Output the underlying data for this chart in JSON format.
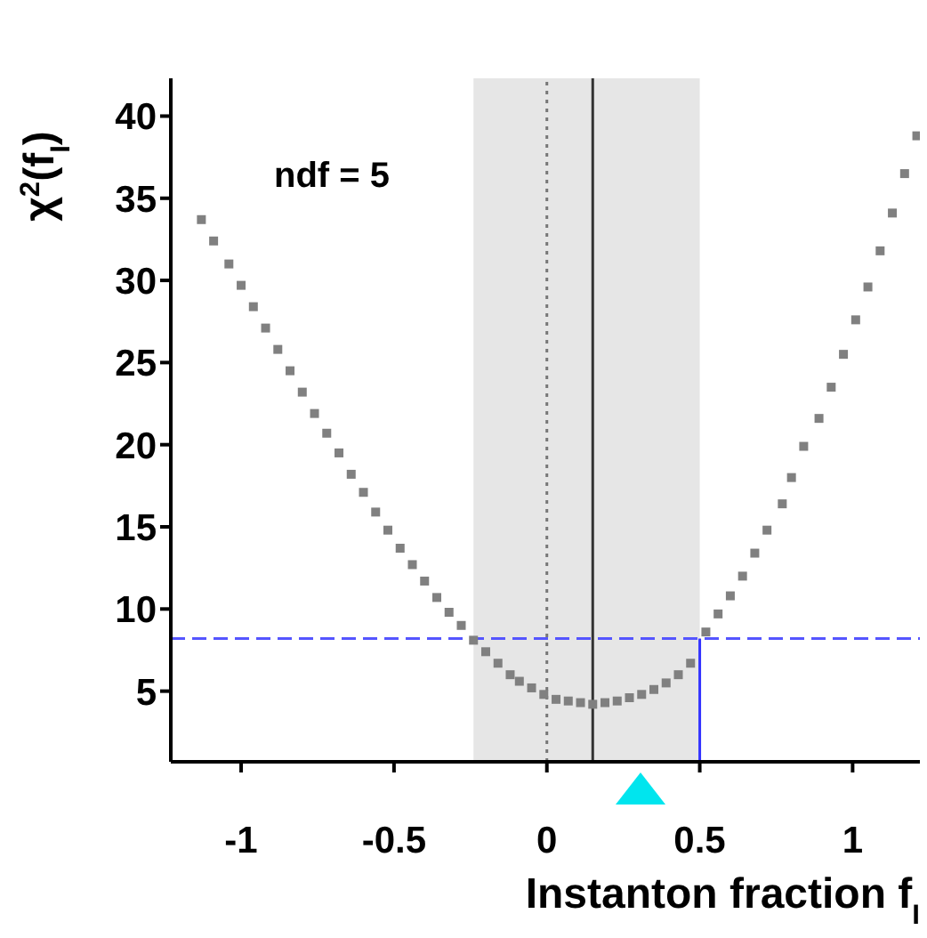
{
  "chart_data": {
    "type": "scatter",
    "xlabel": "Instanton fraction f$_{I}$",
    "ylabel": "χ$^{2}$(f$_{I}$)",
    "annotations": [
      "ndf =  5"
    ],
    "xlim": [
      -1.23,
      1.22
    ],
    "ylim": [
      0.7,
      42.3
    ],
    "xticks": [
      -1,
      -0.5,
      0,
      0.5,
      1
    ],
    "yticks": [
      5,
      10,
      15,
      20,
      25,
      30,
      35,
      40
    ],
    "grid": false,
    "legend": false,
    "series": [
      {
        "marker": "square",
        "color": "#808080",
        "x": [
          -1.13,
          -1.09,
          -1.04,
          -1.0,
          -0.96,
          -0.92,
          -0.88,
          -0.84,
          -0.8,
          -0.76,
          -0.72,
          -0.68,
          -0.64,
          -0.6,
          -0.56,
          -0.52,
          -0.48,
          -0.44,
          -0.4,
          -0.36,
          -0.32,
          -0.28,
          -0.24,
          -0.2,
          -0.16,
          -0.12,
          -0.09,
          -0.05,
          -0.01,
          0.03,
          0.07,
          0.11,
          0.15,
          0.19,
          0.23,
          0.27,
          0.31,
          0.35,
          0.39,
          0.43,
          0.47,
          0.52,
          0.56,
          0.6,
          0.64,
          0.68,
          0.72,
          0.77,
          0.8,
          0.84,
          0.89,
          0.93,
          0.97,
          1.01,
          1.05,
          1.09,
          1.13,
          1.17,
          1.21
        ],
        "values": [
          33.7,
          32.4,
          31.0,
          29.7,
          28.4,
          27.1,
          25.8,
          24.5,
          23.2,
          21.9,
          20.7,
          19.5,
          18.2,
          17.1,
          15.9,
          14.8,
          13.7,
          12.7,
          11.7,
          10.7,
          9.8,
          9.0,
          8.1,
          7.4,
          6.7,
          6.0,
          5.6,
          5.2,
          4.8,
          4.5,
          4.4,
          4.3,
          4.2,
          4.3,
          4.4,
          4.6,
          4.8,
          5.1,
          5.5,
          6.0,
          6.7,
          8.6,
          9.7,
          10.8,
          12.0,
          13.4,
          14.8,
          16.4,
          18.0,
          19.9,
          21.6,
          23.5,
          25.5,
          27.6,
          29.6,
          31.8,
          34.1,
          36.5,
          38.8
        ]
      },
      {
        "type": "line",
        "marker": "none",
        "color": "#3333ff",
        "x": [
          0.5,
          0.5
        ],
        "values": [
          0.7,
          8.2
        ]
      }
    ],
    "bands": [
      {
        "axis": "x",
        "from": -0.24,
        "to": 0.5,
        "color": "#e6e6e6"
      }
    ],
    "ref_lines": [
      {
        "axis": "x",
        "value": 0,
        "color": "#777777",
        "line_style": "dotted"
      },
      {
        "axis": "x",
        "value": 0.15,
        "color": "#333333",
        "line_style": "solid"
      },
      {
        "axis": "y",
        "value": 8.2,
        "color": "#5555ff",
        "line_style": "dashed"
      }
    ]
  }
}
